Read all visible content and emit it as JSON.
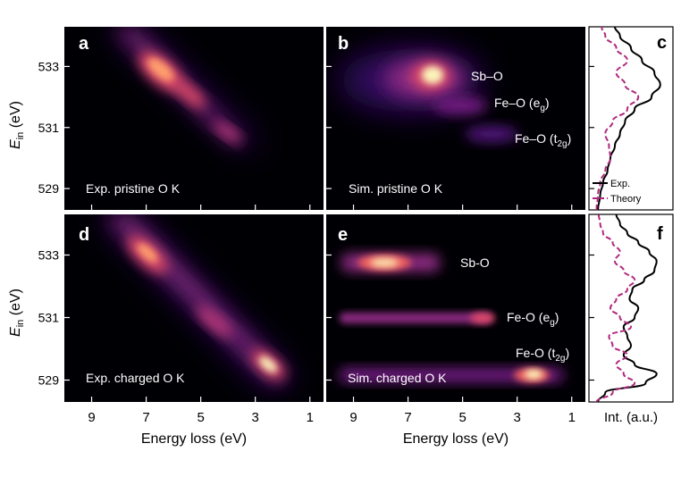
{
  "chart_data": [
    {
      "type": "heatmap",
      "panel_label": "a",
      "annotation": "Exp. pristine O K",
      "ylabel": "E_in (eV)",
      "y_ticks": [
        529,
        531,
        533
      ],
      "ylim": [
        528.3,
        534.3
      ],
      "xlim": [
        10,
        0.5
      ],
      "x_ticks": [
        9,
        7,
        5,
        3,
        1
      ],
      "feature": {
        "from": [
          7.8,
          534.0
        ],
        "to": [
          2.6,
          529.9
        ]
      }
    },
    {
      "type": "heatmap",
      "panel_label": "b",
      "annotation": "Sim. pristine O K",
      "peak_labels": [
        {
          "text": "Sb–O",
          "x": 5.8,
          "y": 532.5,
          "intensity": 1.0
        },
        {
          "text": "Fe–O (e_g)",
          "x": 4.6,
          "y": 531.2,
          "intensity": 0.45
        },
        {
          "text": "Fe–O (t_2g)",
          "x": 3.0,
          "y": 529.8,
          "intensity": 0.3
        }
      ],
      "xlim": [
        10,
        0.5
      ],
      "ylim": [
        528.3,
        534.3
      ]
    },
    {
      "type": "line",
      "panel_label": "c",
      "xlabel": "",
      "legend": [
        "Exp.",
        "Theory"
      ],
      "legend_position": "bottom",
      "series": [
        {
          "name": "Exp.",
          "style": "solid",
          "color": "#000000",
          "y": [
            528.3,
            528.8,
            529.2,
            529.6,
            530.0,
            530.4,
            530.8,
            531.2,
            531.6,
            532.0,
            532.4,
            532.8,
            533.2,
            533.6,
            534.0,
            534.3
          ],
          "intensity": [
            0.05,
            0.08,
            0.12,
            0.18,
            0.22,
            0.28,
            0.35,
            0.42,
            0.55,
            0.78,
            0.9,
            0.82,
            0.65,
            0.5,
            0.35,
            0.28
          ]
        },
        {
          "name": "Theory",
          "style": "dashed",
          "color": "#b0287e",
          "y": [
            528.3,
            528.8,
            529.2,
            529.6,
            530.0,
            530.4,
            530.8,
            531.2,
            531.6,
            532.0,
            532.4,
            532.8,
            533.2,
            533.6,
            534.0,
            534.3
          ],
          "intensity": [
            0.03,
            0.05,
            0.08,
            0.15,
            0.22,
            0.2,
            0.15,
            0.25,
            0.45,
            0.6,
            0.42,
            0.3,
            0.45,
            0.3,
            0.15,
            0.1
          ]
        }
      ]
    },
    {
      "type": "heatmap",
      "panel_label": "d",
      "annotation": "Exp. charged O K",
      "ylabel": "E_in (eV)",
      "y_ticks": [
        529,
        531,
        533
      ],
      "xlabel": "Energy loss (eV)",
      "x_ticks": [
        9,
        7,
        5,
        3,
        1
      ],
      "xlim": [
        10,
        0.5
      ],
      "ylim": [
        528.3,
        534.3
      ],
      "feature": {
        "from": [
          8.2,
          534.0
        ],
        "to": [
          1.6,
          528.4
        ]
      }
    },
    {
      "type": "heatmap",
      "panel_label": "e",
      "annotation": "Sim. charged O K",
      "xlabel": "Energy loss (eV)",
      "x_ticks": [
        9,
        7,
        5,
        3,
        1
      ],
      "xlim": [
        10,
        0.5
      ],
      "ylim": [
        528.3,
        534.3
      ],
      "peak_labels": [
        {
          "text": "Sb-O",
          "x": 7.2,
          "y": 532.6,
          "intensity": 1.0
        },
        {
          "text": "Fe-O (e_g)",
          "x": 5.5,
          "y": 530.4,
          "intensity": 0.6
        },
        {
          "text": "Fe-O (t_2g)",
          "x": 2.0,
          "y": 528.8,
          "intensity": 0.85
        }
      ]
    },
    {
      "type": "line",
      "panel_label": "f",
      "xlabel": "Int. (a.u.)",
      "series": [
        {
          "name": "Exp.",
          "style": "solid",
          "color": "#000000",
          "y": [
            528.3,
            528.6,
            528.9,
            529.2,
            529.5,
            529.8,
            530.1,
            530.4,
            530.7,
            531.0,
            531.3,
            531.6,
            531.9,
            532.2,
            532.5,
            532.8,
            533.1,
            533.4,
            533.7,
            534.0,
            534.3
          ],
          "intensity": [
            0.05,
            0.15,
            0.7,
            0.85,
            0.55,
            0.4,
            0.5,
            0.45,
            0.4,
            0.55,
            0.6,
            0.48,
            0.52,
            0.68,
            0.82,
            0.85,
            0.75,
            0.6,
            0.45,
            0.35,
            0.3
          ]
        },
        {
          "name": "Theory",
          "style": "dashed",
          "color": "#b0287e",
          "y": [
            528.3,
            528.6,
            528.9,
            529.2,
            529.5,
            529.8,
            530.1,
            530.4,
            530.7,
            531.0,
            531.3,
            531.6,
            531.9,
            532.2,
            532.5,
            532.8,
            533.1,
            533.4,
            533.7,
            534.0,
            534.3
          ],
          "intensity": [
            0.03,
            0.25,
            0.55,
            0.4,
            0.3,
            0.45,
            0.25,
            0.2,
            0.5,
            0.35,
            0.22,
            0.3,
            0.45,
            0.55,
            0.4,
            0.28,
            0.35,
            0.25,
            0.12,
            0.08,
            0.06
          ]
        }
      ]
    }
  ]
}
